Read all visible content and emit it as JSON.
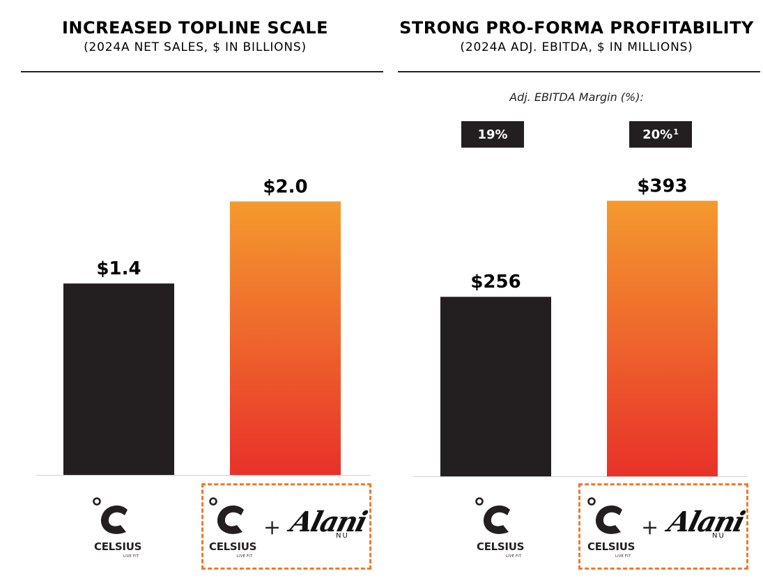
{
  "chart_data": [
    {
      "type": "bar",
      "title": "INCREASED TOPLINE SCALE",
      "subtitle": "(2024A NET SALES, $ IN BILLIONS)",
      "categories": [
        "Celsius",
        "Celsius + Alani Nu"
      ],
      "values": [
        1.4,
        2.0
      ],
      "data_labels": [
        "$1.4",
        "$2.0"
      ],
      "ylim": [
        0,
        2.2
      ],
      "grid": false,
      "colors": [
        "#231f20",
        "gradient:#f49a2e-#e8312a"
      ]
    },
    {
      "type": "bar",
      "title": "STRONG PRO-FORMA PROFITABILITY",
      "subtitle": "(2024A ADJ. EBITDA, $ IN MILLIONS)",
      "categories": [
        "Celsius",
        "Celsius + Alani Nu"
      ],
      "values": [
        256,
        393
      ],
      "data_labels": [
        "$256",
        "$393"
      ],
      "ylim": [
        0,
        434
      ],
      "grid": false,
      "colors": [
        "#231f20",
        "gradient:#f49a2e-#e8312a"
      ],
      "annotation_label": "Adj. EBITDA Margin (%):",
      "margins": [
        {
          "text": "19%",
          "footnote": ""
        },
        {
          "text": "20%",
          "footnote": "1"
        }
      ]
    }
  ],
  "logos": {
    "celsius_word": "CELSIUS",
    "celsius_tagline": "LIVE FIT",
    "plus": "+",
    "alani_word": "Alani",
    "alani_nu": "NU"
  },
  "colors": {
    "dark": "#231f20",
    "orange_top": "#f49a2e",
    "red_bottom": "#e8312a",
    "dashed": "#f2792a"
  }
}
